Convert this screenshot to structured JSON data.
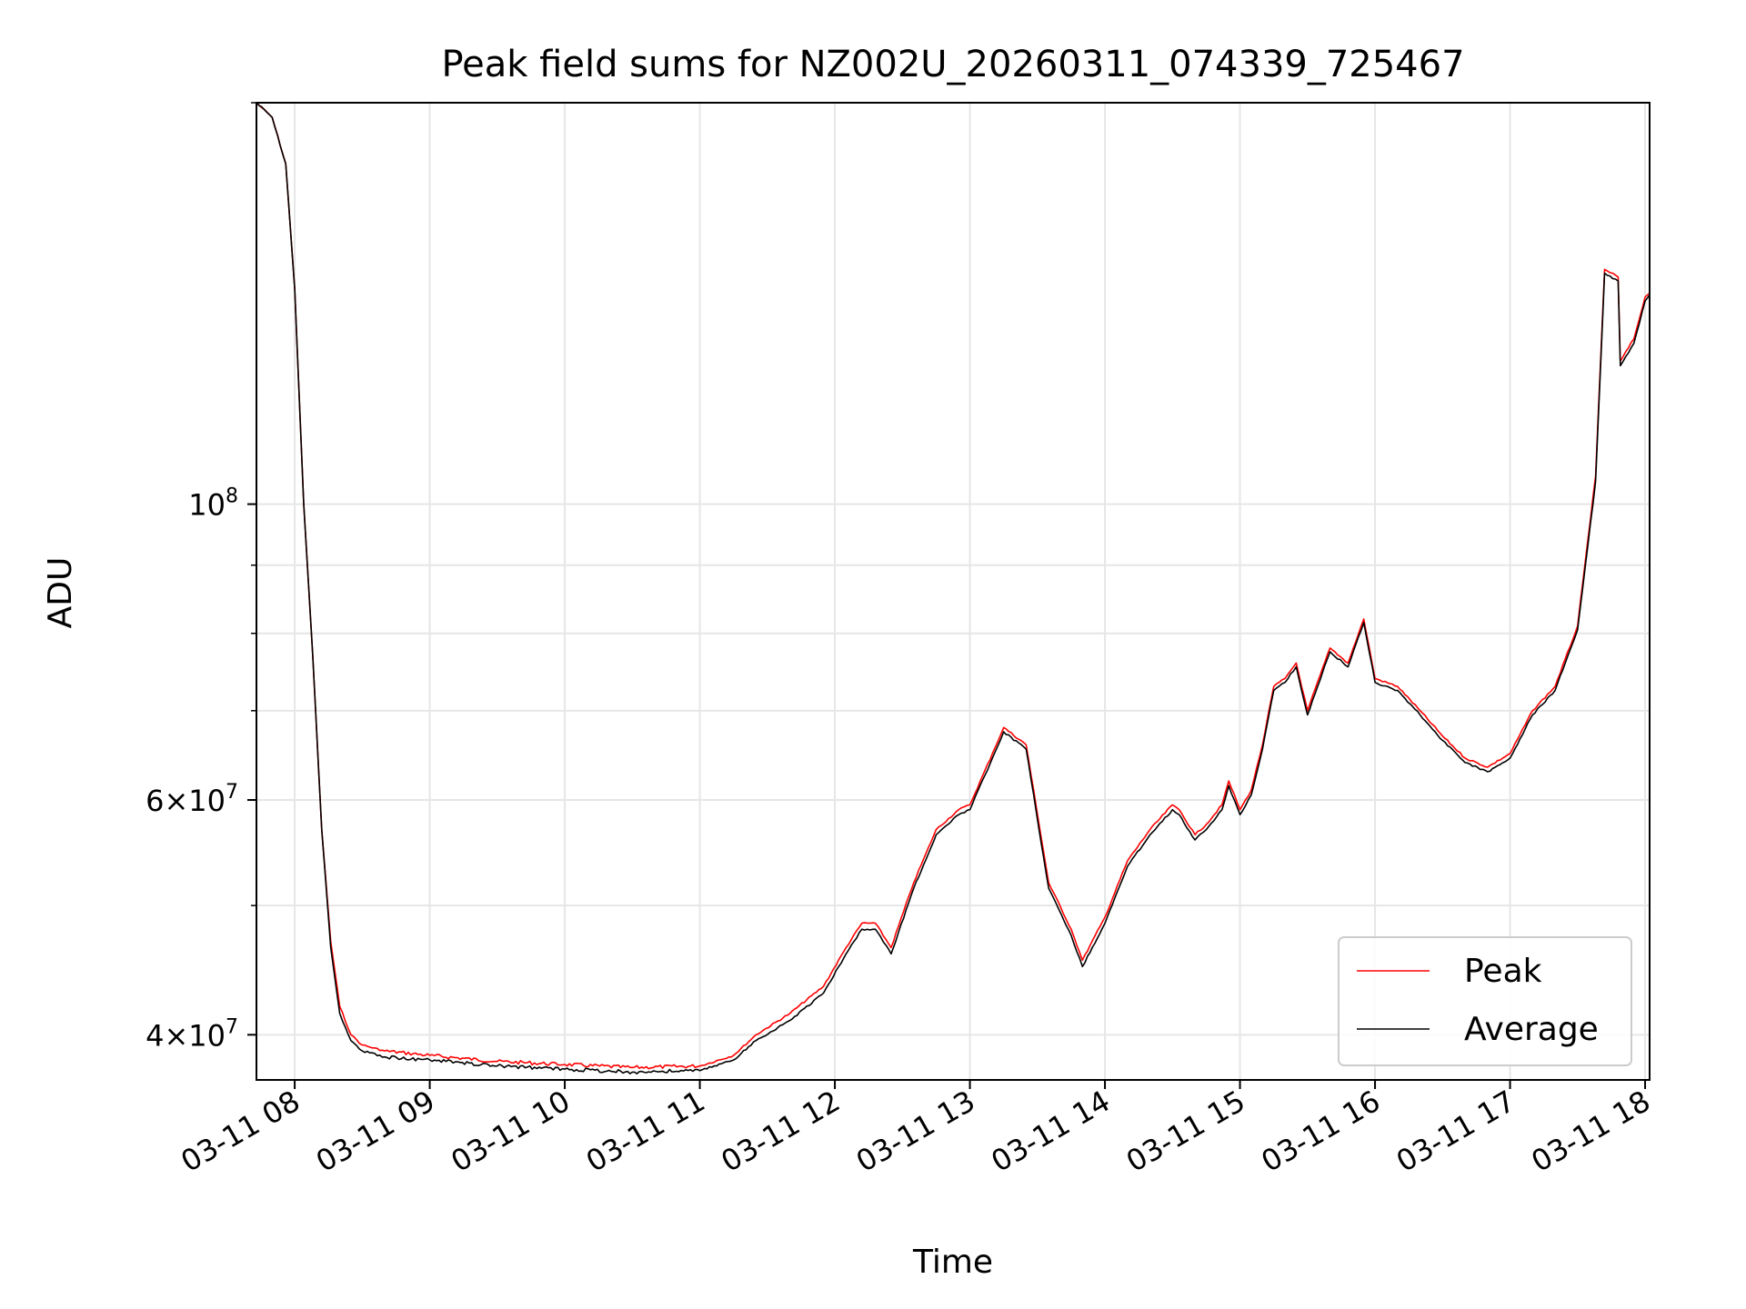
{
  "chart_data": {
    "type": "line",
    "title": "Peak field sums for NZ002U_20260311_074339_725467",
    "xlabel": "Time",
    "ylabel": "ADU",
    "yscale": "log",
    "xlim": [
      "2026-03-11 07:43",
      "2026-03-11 18:02"
    ],
    "ylim": [
      37000000,
      200000000
    ],
    "x_ticks": [
      "03-11 08",
      "03-11 09",
      "03-11 10",
      "03-11 11",
      "03-11 12",
      "03-11 13",
      "03-11 14",
      "03-11 15",
      "03-11 16",
      "03-11 17",
      "03-11 18"
    ],
    "y_ticks": [
      {
        "value": 100000000,
        "base": "10",
        "exp": "8",
        "mult": ""
      },
      {
        "value": 60000000,
        "base": "10",
        "exp": "7",
        "mult": "6"
      },
      {
        "value": 40000000,
        "base": "10",
        "exp": "7",
        "mult": "4"
      }
    ],
    "grid": true,
    "legend_position": "lower-right",
    "x": [
      "2026-03-11 07:43",
      "2026-03-11 07:50",
      "2026-03-11 07:56",
      "2026-03-11 08:00",
      "2026-03-11 08:04",
      "2026-03-11 08:08",
      "2026-03-11 08:12",
      "2026-03-11 08:16",
      "2026-03-11 08:20",
      "2026-03-11 08:25",
      "2026-03-11 08:30",
      "2026-03-11 08:40",
      "2026-03-11 09:00",
      "2026-03-11 09:30",
      "2026-03-11 10:00",
      "2026-03-11 10:30",
      "2026-03-11 11:00",
      "2026-03-11 11:15",
      "2026-03-11 11:25",
      "2026-03-11 11:40",
      "2026-03-11 11:55",
      "2026-03-11 12:05",
      "2026-03-11 12:12",
      "2026-03-11 12:18",
      "2026-03-11 12:25",
      "2026-03-11 12:35",
      "2026-03-11 12:45",
      "2026-03-11 12:55",
      "2026-03-11 13:00",
      "2026-03-11 13:10",
      "2026-03-11 13:15",
      "2026-03-11 13:25",
      "2026-03-11 13:35",
      "2026-03-11 13:45",
      "2026-03-11 13:50",
      "2026-03-11 14:00",
      "2026-03-11 14:10",
      "2026-03-11 14:20",
      "2026-03-11 14:30",
      "2026-03-11 14:33",
      "2026-03-11 14:40",
      "2026-03-11 14:45",
      "2026-03-11 14:52",
      "2026-03-11 14:55",
      "2026-03-11 15:00",
      "2026-03-11 15:05",
      "2026-03-11 15:10",
      "2026-03-11 15:15",
      "2026-03-11 15:20",
      "2026-03-11 15:25",
      "2026-03-11 15:30",
      "2026-03-11 15:40",
      "2026-03-11 15:48",
      "2026-03-11 15:55",
      "2026-03-11 16:00",
      "2026-03-11 16:10",
      "2026-03-11 16:20",
      "2026-03-11 16:30",
      "2026-03-11 16:40",
      "2026-03-11 16:50",
      "2026-03-11 17:00",
      "2026-03-11 17:10",
      "2026-03-11 17:20",
      "2026-03-11 17:30",
      "2026-03-11 17:38",
      "2026-03-11 17:42",
      "2026-03-11 17:48",
      "2026-03-11 17:49",
      "2026-03-11 17:55",
      "2026-03-11 18:00",
      "2026-03-11 18:02"
    ],
    "series": [
      {
        "name": "Peak",
        "color": "#ff0000",
        "values": [
          200000000,
          195000000,
          180000000,
          145000000,
          100000000,
          77000000,
          57000000,
          47000000,
          42000000,
          40000000,
          39300000,
          38900000,
          38600000,
          38200000,
          38000000,
          37800000,
          37900000,
          38600000,
          40000000,
          41500000,
          43500000,
          46500000,
          48500000,
          48500000,
          46500000,
          52000000,
          57000000,
          59000000,
          59500000,
          65000000,
          68000000,
          66000000,
          52000000,
          48000000,
          45500000,
          49000000,
          54000000,
          57000000,
          59500000,
          59000000,
          56500000,
          57500000,
          59500000,
          62000000,
          59000000,
          61000000,
          66000000,
          73000000,
          74000000,
          76000000,
          70000000,
          78000000,
          76000000,
          82000000,
          74000000,
          73000000,
          70000000,
          67000000,
          64500000,
          63500000,
          65000000,
          70000000,
          73000000,
          81000000,
          105000000,
          150000000,
          148000000,
          128000000,
          133000000,
          143000000,
          144000000
        ]
      },
      {
        "name": "Average",
        "color": "#000000",
        "values": [
          200000000,
          195000000,
          180000000,
          145000000,
          100000000,
          77000000,
          57000000,
          46500000,
          41500000,
          39600000,
          38900000,
          38500000,
          38300000,
          37900000,
          37700000,
          37500000,
          37600000,
          38300000,
          39600000,
          41000000,
          43000000,
          46000000,
          48000000,
          48000000,
          46000000,
          51500000,
          56500000,
          58500000,
          59000000,
          64500000,
          67500000,
          65500000,
          51500000,
          47500000,
          45000000,
          48500000,
          53500000,
          56500000,
          59000000,
          58500000,
          56000000,
          57000000,
          59000000,
          61500000,
          58500000,
          60500000,
          65500000,
          72500000,
          73500000,
          75500000,
          69500000,
          77500000,
          75500000,
          81500000,
          73500000,
          72500000,
          69500000,
          66500000,
          64000000,
          63000000,
          64500000,
          69500000,
          72500000,
          80500000,
          104000000,
          149000000,
          147000000,
          127000000,
          132000000,
          142000000,
          143500000
        ]
      }
    ]
  }
}
